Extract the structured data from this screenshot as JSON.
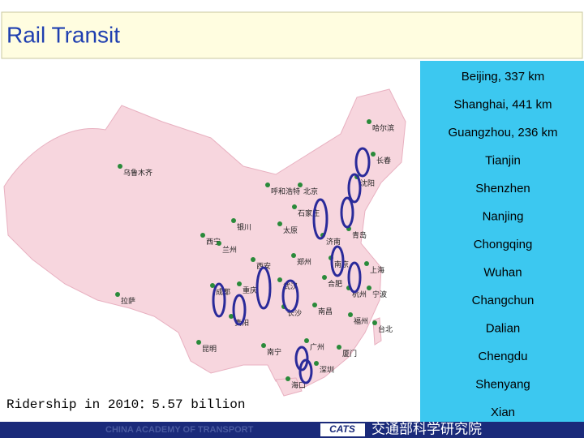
{
  "title": "Rail Transit",
  "cities": [
    "Beijing,  337 km",
    "Shanghai, 441 km",
    "Guangzhou, 236  km",
    "Tianjin",
    "Shenzhen",
    "Nanjing",
    "Chongqing",
    "Wuhan",
    "Changchun",
    "Dalian",
    "Chengdu",
    "Shenyang",
    "Xian"
  ],
  "ridership": "Ridership in 2010：5.57 billion",
  "map_labels": [
    "乌鲁木齐",
    "哈尔滨",
    "长春",
    "沈阳",
    "呼和浩特",
    "北京",
    "石家庄",
    "银川",
    "太原",
    "济南",
    "青岛",
    "西宁",
    "兰州",
    "西安",
    "郑州",
    "拉萨",
    "成都",
    "重庆",
    "武汉",
    "合肥",
    "南京",
    "上海",
    "杭州",
    "宁波",
    "长沙",
    "南昌",
    "贵阳",
    "福州",
    "台北",
    "昆明",
    "南宁",
    "广州",
    "厦门",
    "深圳",
    "海口"
  ],
  "footer": {
    "watermark": "CHINA ACADEMY OF TRANSPORT",
    "logo": "CATS",
    "institute": "交通部科学研究院"
  }
}
